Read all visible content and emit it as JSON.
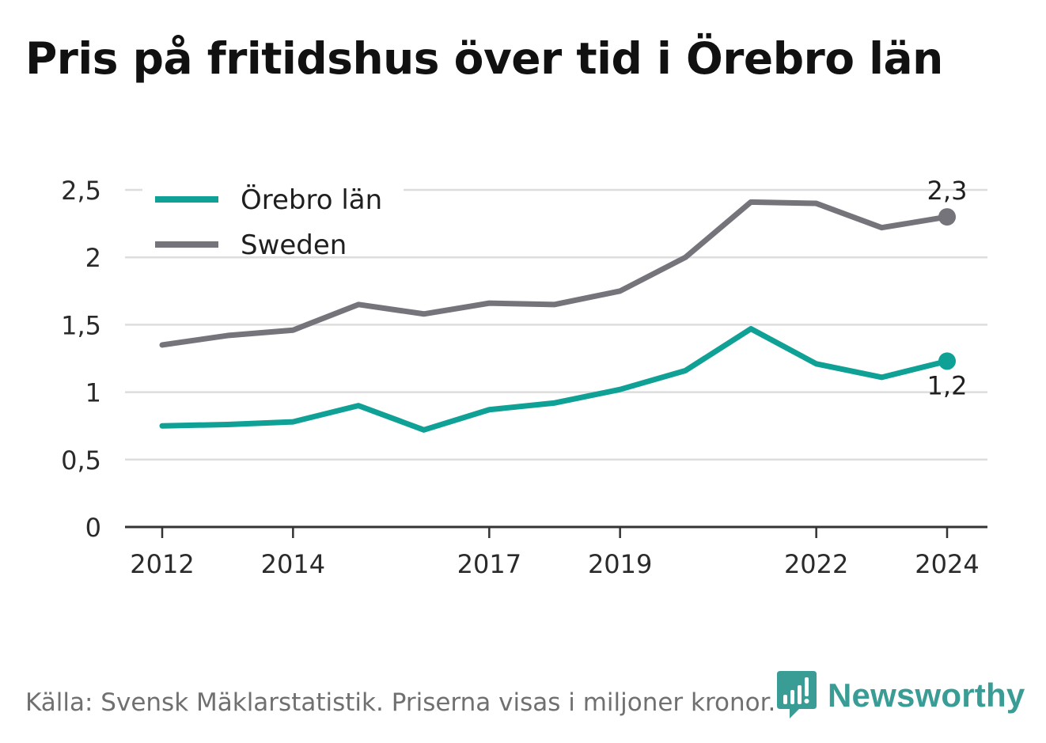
{
  "title": "Pris på fritidshus över tid i Örebro län",
  "footer": "Källa: Svensk Mäklarstatistik. Priserna visas i miljoner kronor.",
  "brand": {
    "name": "Newsworthy",
    "icon": "newsworthy-chart-bubble-icon",
    "color": "#3a9d95"
  },
  "chart_data": {
    "type": "line",
    "title": "Pris på fritidshus över tid i Örebro län",
    "x": [
      2012,
      2013,
      2014,
      2015,
      2016,
      2017,
      2018,
      2019,
      2020,
      2021,
      2022,
      2023,
      2024
    ],
    "x_tick_labels": [
      "2012",
      "2014",
      "2017",
      "2019",
      "2022",
      "2024"
    ],
    "x_tick_values": [
      2012,
      2014,
      2017,
      2019,
      2022,
      2024
    ],
    "y_tick_labels": [
      "0",
      "0,5",
      "1",
      "1,5",
      "2",
      "2,5"
    ],
    "y_tick_values": [
      0,
      0.5,
      1,
      1.5,
      2,
      2.5
    ],
    "ylim": [
      0,
      2.5
    ],
    "grid": true,
    "legend_position": "top-left",
    "series": [
      {
        "name": "Örebro län",
        "color": "#0fa196",
        "values": [
          0.75,
          0.76,
          0.78,
          0.9,
          0.72,
          0.87,
          0.92,
          1.02,
          1.16,
          1.47,
          1.21,
          1.11,
          1.23
        ],
        "end_label": "1,2"
      },
      {
        "name": "Sweden",
        "color": "#75747b",
        "values": [
          1.35,
          1.42,
          1.46,
          1.65,
          1.58,
          1.66,
          1.65,
          1.75,
          2.0,
          2.41,
          2.4,
          2.22,
          2.3
        ],
        "end_label": "2,3"
      }
    ]
  }
}
